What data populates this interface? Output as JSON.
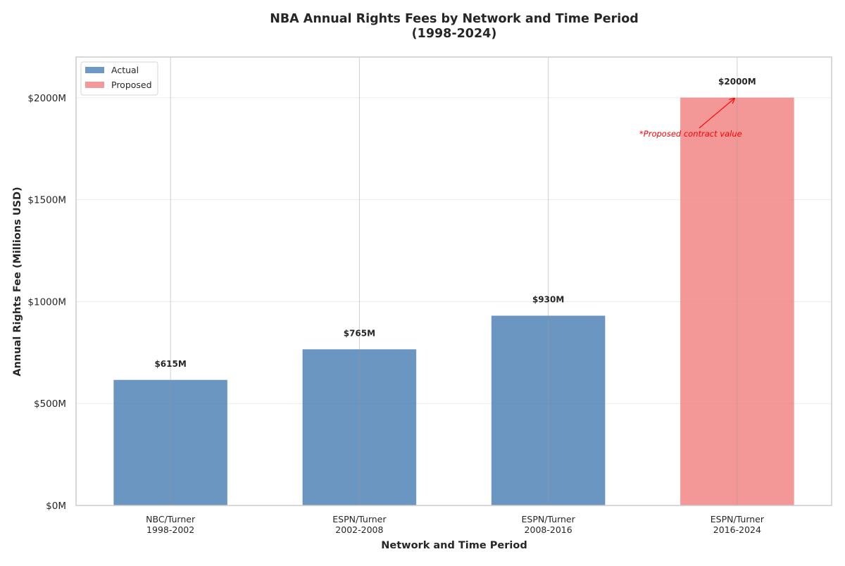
{
  "chart_data": {
    "type": "bar",
    "title": "NBA Annual Rights Fees by Network and Time Period",
    "subtitle": "(1998-2024)",
    "xlabel": "Network and Time Period",
    "ylabel": "Annual Rights Fee (Millions USD)",
    "categories": [
      {
        "network": "NBC/Turner",
        "period": "1998-2002"
      },
      {
        "network": "ESPN/Turner",
        "period": "2002-2008"
      },
      {
        "network": "ESPN/Turner",
        "period": "2008-2016"
      },
      {
        "network": "ESPN/Turner",
        "period": "2016-2024"
      }
    ],
    "values": [
      615,
      765,
      930,
      2000
    ],
    "value_labels": [
      "$615M",
      "$765M",
      "$930M",
      "$2000M"
    ],
    "bar_types": [
      "Actual",
      "Actual",
      "Actual",
      "Proposed"
    ],
    "ylim": [
      0,
      2200
    ],
    "yticks": [
      0,
      500,
      1000,
      1500,
      2000
    ],
    "ytick_labels": [
      "$0M",
      "$500M",
      "$1000M",
      "$1500M",
      "$2000M"
    ],
    "grid": true,
    "legend": {
      "placement": "top-left",
      "entries": [
        {
          "label": "Actual",
          "color": "#4a7fb5"
        },
        {
          "label": "Proposed",
          "color": "#f08080"
        }
      ]
    },
    "colors": {
      "Actual": "#4a7fb5",
      "Proposed": "#f08080",
      "annotation": "#ff0000"
    },
    "annotation": {
      "text": "*Proposed contract value",
      "category_index": 3,
      "points_to_value": 2000
    }
  }
}
